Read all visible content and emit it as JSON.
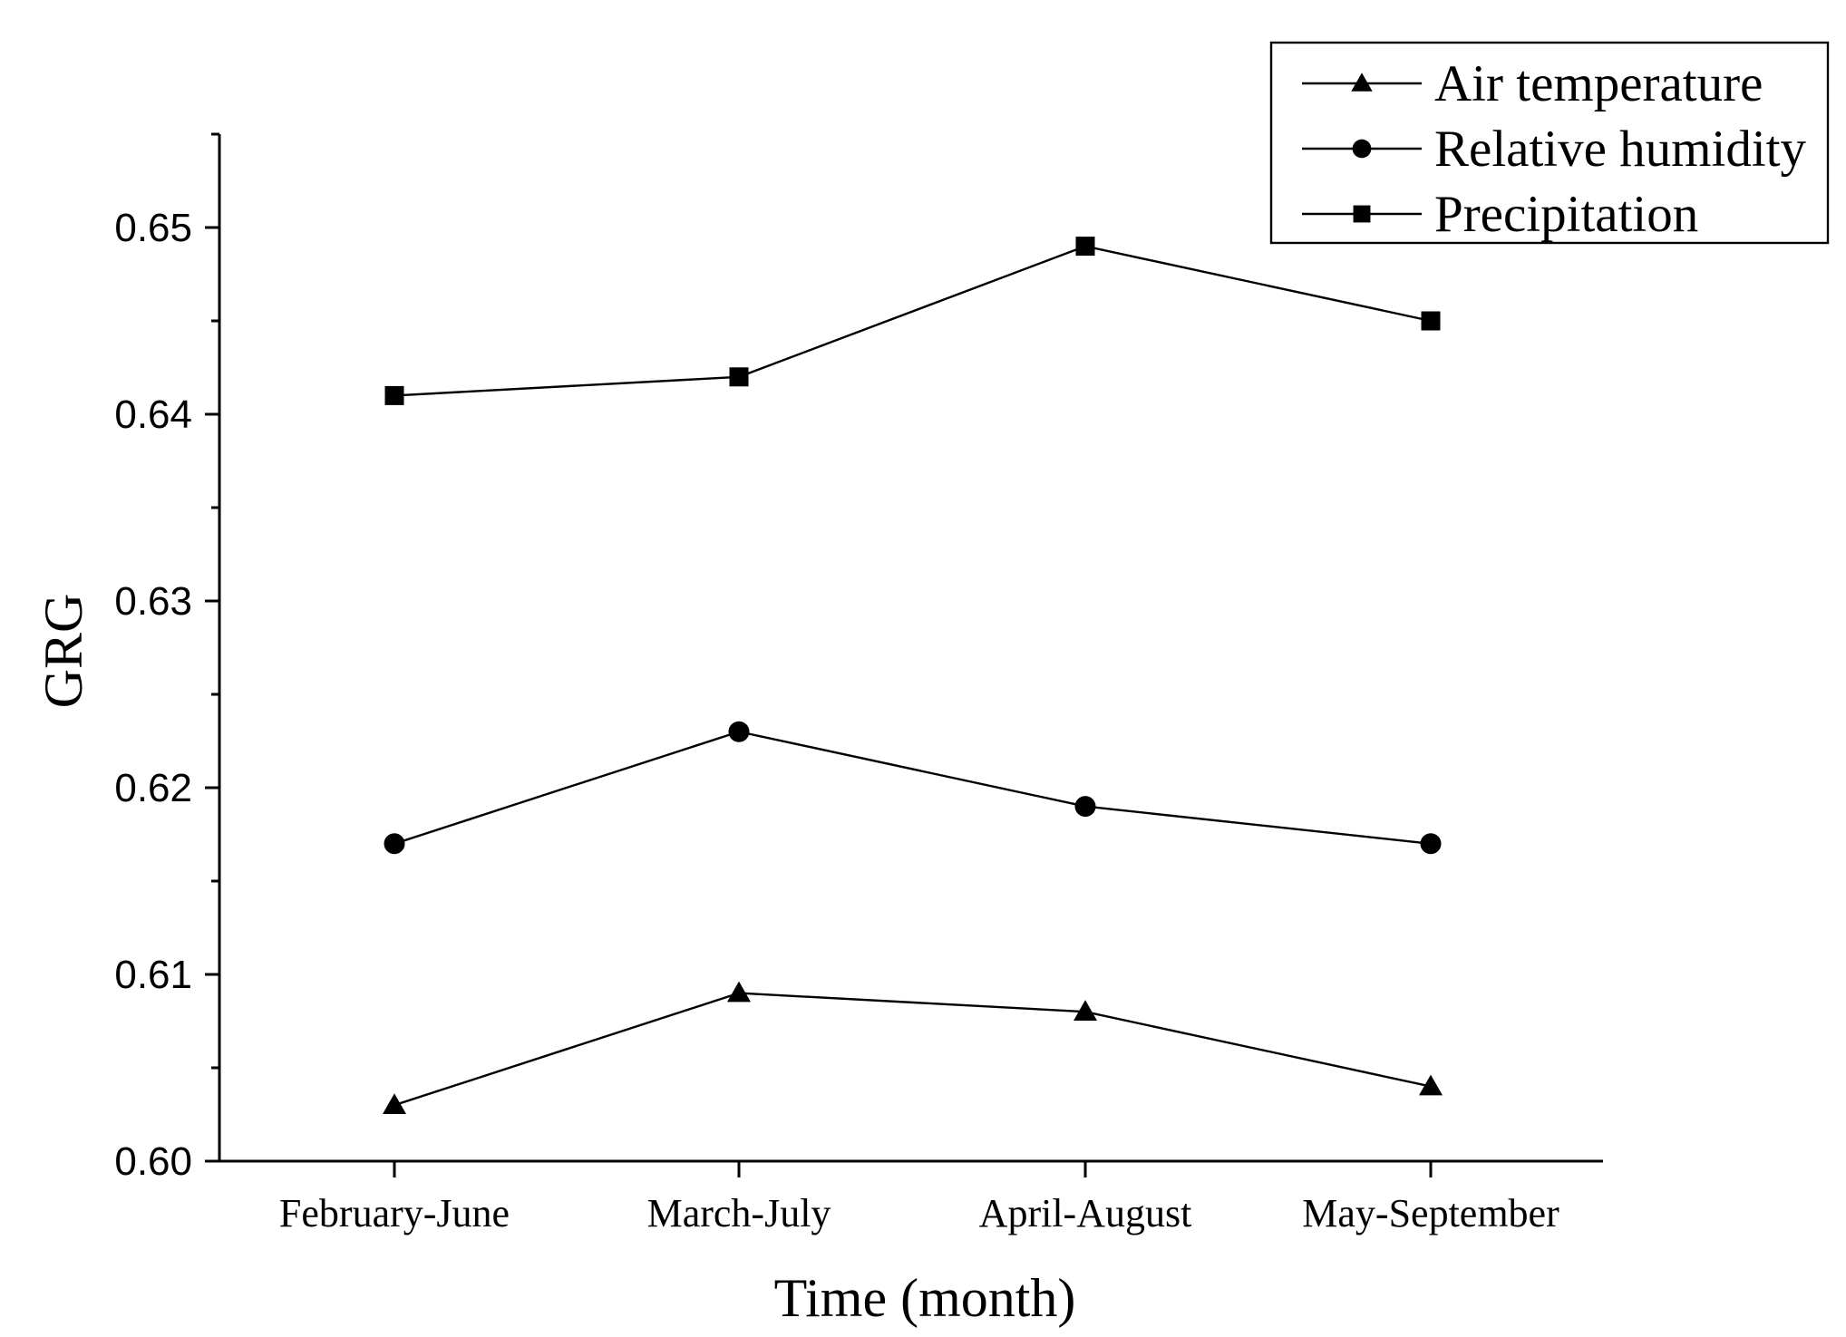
{
  "chart_data": {
    "type": "line",
    "xlabel": "Time (month)",
    "ylabel": "GRG",
    "categories": [
      "February-June",
      "March-July",
      "April-August",
      "May-September"
    ],
    "ylim": [
      0.6,
      0.655
    ],
    "yticks": [
      "0.60",
      "0.61",
      "0.62",
      "0.63",
      "0.64",
      "0.65"
    ],
    "grid": false,
    "legend_position": "top-right",
    "series": [
      {
        "name": "Air temperature",
        "marker": "triangle",
        "values": [
          0.603,
          0.609,
          0.608,
          0.604
        ]
      },
      {
        "name": "Relative humidity",
        "marker": "circle",
        "values": [
          0.617,
          0.623,
          0.619,
          0.617
        ]
      },
      {
        "name": "Precipitation",
        "marker": "square",
        "values": [
          0.641,
          0.642,
          0.649,
          0.645
        ]
      }
    ],
    "line_color": "#000000"
  }
}
